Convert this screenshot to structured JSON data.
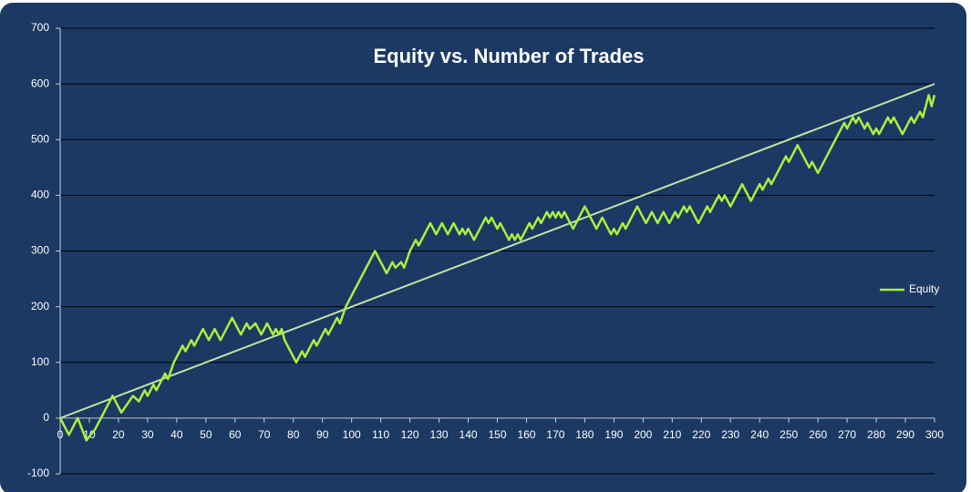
{
  "chart_data": {
    "type": "line",
    "title": "Equity vs. Number of Trades",
    "xlim": [
      0,
      300
    ],
    "xticks": [
      0,
      10,
      20,
      30,
      40,
      50,
      60,
      70,
      80,
      90,
      100,
      110,
      120,
      130,
      140,
      150,
      160,
      170,
      180,
      190,
      200,
      210,
      220,
      230,
      240,
      250,
      260,
      270,
      280,
      290,
      300
    ],
    "ylim": [
      -100,
      700
    ],
    "yticks": [
      -100,
      0,
      100,
      200,
      300,
      400,
      500,
      600,
      700
    ],
    "grid": true,
    "legend": "right",
    "series": [
      {
        "name": "Equity",
        "color": "#a8f040",
        "x": [
          0,
          3,
          6,
          9,
          12,
          18,
          21,
          25,
          27,
          29,
          30,
          32,
          33,
          36,
          37,
          39,
          42,
          43,
          45,
          46,
          49,
          51,
          53,
          55,
          57,
          59,
          62,
          64,
          65,
          67,
          69,
          71,
          73,
          74,
          75,
          76,
          77,
          81,
          83,
          84,
          87,
          88,
          91,
          92,
          95,
          96,
          98,
          108,
          112,
          114,
          115,
          117,
          118,
          120,
          122,
          123,
          127,
          129,
          131,
          133,
          135,
          137,
          138,
          139,
          140,
          142,
          144,
          146,
          147,
          148,
          150,
          151,
          154,
          155,
          156,
          157,
          158,
          161,
          162,
          164,
          165,
          167,
          168,
          169,
          170,
          171,
          172,
          173,
          175,
          176,
          178,
          180,
          183,
          184,
          186,
          189,
          190,
          191,
          193,
          194,
          196,
          198,
          201,
          203,
          205,
          207,
          209,
          211,
          212,
          214,
          215,
          216,
          219,
          222,
          223,
          226,
          227,
          228,
          230,
          232,
          234,
          237,
          239,
          240,
          241,
          243,
          244,
          247,
          249,
          250,
          253,
          257,
          258,
          260,
          262,
          266,
          269,
          270,
          272,
          273,
          274,
          276,
          277,
          279,
          280,
          281,
          284,
          285,
          286,
          289,
          290,
          292,
          293,
          295,
          296,
          298,
          299,
          300
        ],
        "values": [
          0,
          -30,
          0,
          -40,
          -20,
          40,
          10,
          40,
          30,
          50,
          40,
          60,
          50,
          80,
          70,
          100,
          130,
          120,
          140,
          130,
          160,
          140,
          160,
          140,
          160,
          180,
          150,
          170,
          160,
          170,
          150,
          170,
          150,
          160,
          150,
          160,
          140,
          100,
          120,
          110,
          140,
          130,
          160,
          150,
          180,
          170,
          200,
          300,
          260,
          280,
          270,
          280,
          270,
          300,
          320,
          310,
          350,
          330,
          350,
          330,
          350,
          330,
          340,
          330,
          340,
          320,
          340,
          360,
          350,
          360,
          340,
          350,
          320,
          330,
          320,
          330,
          320,
          350,
          340,
          360,
          350,
          370,
          360,
          370,
          360,
          370,
          360,
          370,
          350,
          340,
          360,
          380,
          350,
          340,
          360,
          330,
          340,
          330,
          350,
          340,
          360,
          380,
          350,
          370,
          350,
          370,
          350,
          370,
          360,
          380,
          370,
          380,
          350,
          380,
          370,
          400,
          390,
          400,
          380,
          400,
          420,
          390,
          410,
          420,
          410,
          430,
          420,
          450,
          470,
          460,
          490,
          450,
          460,
          440,
          460,
          500,
          530,
          520,
          540,
          530,
          540,
          520,
          530,
          510,
          520,
          510,
          540,
          530,
          540,
          510,
          520,
          540,
          530,
          550,
          540,
          580,
          560,
          580
        ]
      },
      {
        "color": "#c6e3a4",
        "x": [
          0,
          300
        ],
        "values": [
          0,
          600
        ]
      }
    ]
  }
}
